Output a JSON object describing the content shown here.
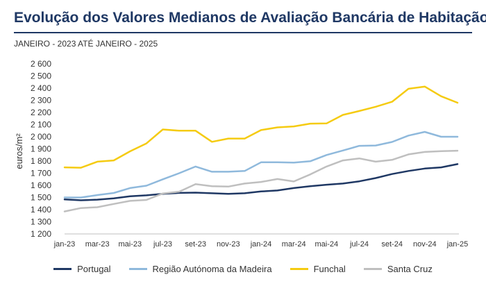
{
  "header": {
    "title": "Evolução dos Valores Medianos de Avaliação Bancária de Habitação",
    "subtitle": "JANEIRO - 2023 ATÉ JANEIRO - 2025"
  },
  "chart_data": {
    "type": "line",
    "ylabel": "euros/m²",
    "ylim": [
      1200,
      2600
    ],
    "y_ticks": [
      "1 200",
      "1 300",
      "1 400",
      "1 500",
      "1 600",
      "1 700",
      "1 800",
      "1 900",
      "2 000",
      "2 100",
      "2 200",
      "2 300",
      "2 400",
      "2 500",
      "2 600"
    ],
    "y_tick_values": [
      1200,
      1300,
      1400,
      1500,
      1600,
      1700,
      1800,
      1900,
      2000,
      2100,
      2200,
      2300,
      2400,
      2500,
      2600
    ],
    "x_labels": [
      "jan-23",
      "mar-23",
      "mai-23",
      "jul-23",
      "set-23",
      "nov-23",
      "jan-24",
      "mar-24",
      "mai-24",
      "jul-24",
      "set-24",
      "nov-24",
      "jan-25"
    ],
    "categories": [
      "jan-23",
      "fev-23",
      "mar-23",
      "abr-23",
      "mai-23",
      "jun-23",
      "jul-23",
      "ago-23",
      "set-23",
      "out-23",
      "nov-23",
      "dez-23",
      "jan-24",
      "fev-24",
      "mar-24",
      "abr-24",
      "mai-24",
      "jun-24",
      "jul-24",
      "ago-24",
      "set-24",
      "out-24",
      "nov-24",
      "dez-24",
      "jan-25"
    ],
    "legend_position": "bottom",
    "grid": false,
    "series": [
      {
        "name": "Portugal",
        "color": "#1f3864",
        "values": [
          1484,
          1477,
          1482,
          1493,
          1510,
          1518,
          1530,
          1538,
          1540,
          1535,
          1530,
          1535,
          1550,
          1558,
          1578,
          1593,
          1605,
          1615,
          1633,
          1660,
          1693,
          1718,
          1738,
          1748,
          1775
        ]
      },
      {
        "name": "Região Autónoma da Madeira",
        "color": "#8fb9dc",
        "values": [
          1500,
          1500,
          1520,
          1537,
          1578,
          1597,
          1650,
          1700,
          1755,
          1712,
          1712,
          1718,
          1790,
          1790,
          1787,
          1798,
          1850,
          1887,
          1925,
          1928,
          1957,
          2010,
          2040,
          2000,
          2000
        ]
      },
      {
        "name": "Funchal",
        "color": "#f5cb11",
        "values": [
          1748,
          1745,
          1795,
          1805,
          1880,
          1945,
          2060,
          2050,
          2050,
          1958,
          1985,
          1985,
          2055,
          2077,
          2085,
          2108,
          2110,
          2180,
          2212,
          2247,
          2288,
          2395,
          2413,
          2333,
          2280
        ]
      },
      {
        "name": "Santa Cruz",
        "color": "#bfbfbf",
        "values": [
          1385,
          1413,
          1420,
          1447,
          1472,
          1480,
          1533,
          1548,
          1610,
          1593,
          1590,
          1615,
          1628,
          1652,
          1632,
          1690,
          1755,
          1805,
          1822,
          1795,
          1810,
          1855,
          1875,
          1882,
          1885
        ]
      }
    ]
  }
}
